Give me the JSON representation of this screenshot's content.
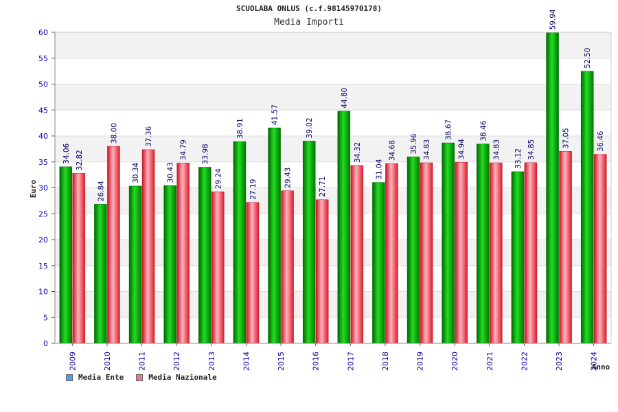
{
  "colors": {
    "ente": "#009900",
    "nazionale": "#e8334a",
    "legend_ente": "#5b9be6",
    "legend_nazionale": "#e07aa6",
    "axis_text": "#0000aa",
    "label_text": "#000066",
    "band": "#f2f2f2"
  },
  "chart_data": {
    "type": "bar",
    "title": "SCUOLABA ONLUS (c.f.98145970178)",
    "subtitle": "Media Importi",
    "ylabel": "Euro",
    "xlabel": "Anno",
    "ylim": [
      0,
      60
    ],
    "yticks": [
      "0",
      "5",
      "10",
      "15",
      "20",
      "25",
      "30",
      "35",
      "40",
      "45",
      "50",
      "55",
      "60"
    ],
    "categories": [
      "2009",
      "2010",
      "2011",
      "2012",
      "2013",
      "2014",
      "2015",
      "2016",
      "2017",
      "2018",
      "2019",
      "2020",
      "2021",
      "2022",
      "2023",
      "2024"
    ],
    "series": [
      {
        "name": "Media Ente",
        "values": [
          34.06,
          26.84,
          30.34,
          30.43,
          33.98,
          38.91,
          41.57,
          39.02,
          44.8,
          31.04,
          35.96,
          38.67,
          38.46,
          33.12,
          59.94,
          52.5
        ],
        "labels": [
          "34.06",
          "26.84",
          "30.34",
          "30.43",
          "33.98",
          "38.91",
          "41.57",
          "39.02",
          "44.80",
          "31.04",
          "35.96",
          "38.67",
          "38.46",
          "33.12",
          "59.94",
          "52.50"
        ]
      },
      {
        "name": "Media Nazionale",
        "values": [
          32.82,
          38.0,
          37.36,
          34.79,
          29.24,
          27.19,
          29.43,
          27.71,
          34.32,
          34.68,
          34.83,
          34.94,
          34.83,
          34.85,
          37.05,
          36.46
        ],
        "labels": [
          "32.82",
          "38.00",
          "37.36",
          "34.79",
          "29.24",
          "27.19",
          "29.43",
          "27.71",
          "34.32",
          "34.68",
          "34.83",
          "34.94",
          "34.83",
          "34.85",
          "37.05",
          "36.46"
        ]
      }
    ],
    "grid": true,
    "legend_position": "bottom-left"
  }
}
